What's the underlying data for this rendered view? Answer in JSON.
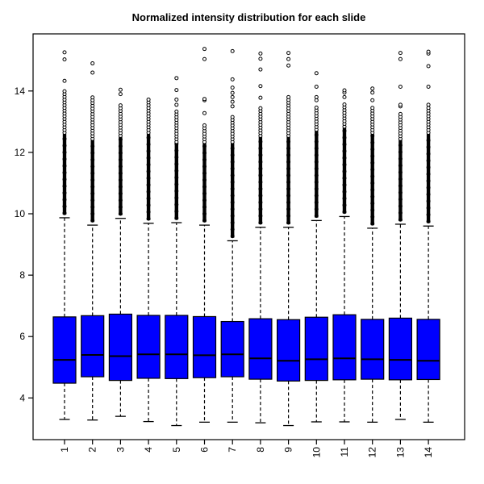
{
  "title": "Normalized intensity distribution for each slide",
  "colors": {
    "box_fill": "#0000ff",
    "stroke": "#000000",
    "background": "#ffffff"
  },
  "chart_data": {
    "type": "boxplot",
    "title": "Normalized intensity distribution for each slide",
    "xlabel": "",
    "ylabel": "",
    "categories": [
      "1",
      "2",
      "3",
      "4",
      "5",
      "6",
      "7",
      "8",
      "9",
      "10",
      "11",
      "12",
      "13",
      "14"
    ],
    "y_ticks": [
      4,
      6,
      8,
      10,
      12,
      14
    ],
    "ylim": [
      2.6,
      15.9
    ],
    "grid": false,
    "legend": false,
    "box_fill": "#0000ff",
    "whisker_style": "dashed",
    "series": [
      {
        "label": "1",
        "whisker_low": 3.3,
        "q1": 4.48,
        "median": 5.24,
        "q3": 6.64,
        "whisker_high": 9.87,
        "dense_outliers_to": 12.6,
        "scattered_outliers_to": 14.0,
        "outliers": [
          14.33,
          15.03,
          15.26
        ]
      },
      {
        "label": "2",
        "whisker_low": 3.28,
        "q1": 4.69,
        "median": 5.4,
        "q3": 6.68,
        "whisker_high": 9.63,
        "dense_outliers_to": 12.4,
        "scattered_outliers_to": 13.85,
        "outliers": [
          14.6,
          14.9
        ]
      },
      {
        "label": "3",
        "whisker_low": 3.4,
        "q1": 4.57,
        "median": 5.36,
        "q3": 6.73,
        "whisker_high": 9.85,
        "dense_outliers_to": 12.5,
        "scattered_outliers_to": 13.6,
        "outliers": [
          13.9,
          14.04
        ]
      },
      {
        "label": "4",
        "whisker_low": 3.23,
        "q1": 4.64,
        "median": 5.42,
        "q3": 6.69,
        "whisker_high": 9.69,
        "dense_outliers_to": 12.6,
        "scattered_outliers_to": 13.75,
        "outliers": []
      },
      {
        "label": "5",
        "whisker_low": 3.1,
        "q1": 4.63,
        "median": 5.42,
        "q3": 6.69,
        "whisker_high": 9.71,
        "dense_outliers_to": 12.3,
        "scattered_outliers_to": 13.35,
        "outliers": [
          13.55,
          13.72,
          14.03,
          14.42
        ]
      },
      {
        "label": "6",
        "whisker_low": 3.21,
        "q1": 4.66,
        "median": 5.39,
        "q3": 6.65,
        "whisker_high": 9.63,
        "dense_outliers_to": 12.3,
        "scattered_outliers_to": 12.95,
        "outliers": [
          13.28,
          13.7,
          13.74,
          15.04,
          15.37
        ]
      },
      {
        "label": "7",
        "whisker_low": 3.21,
        "q1": 4.69,
        "median": 5.42,
        "q3": 6.49,
        "whisker_high": 9.12,
        "dense_outliers_to": 12.3,
        "scattered_outliers_to": 13.15,
        "outliers": [
          13.5,
          13.65,
          13.8,
          13.94,
          14.11,
          14.38,
          15.3
        ]
      },
      {
        "label": "8",
        "whisker_low": 3.19,
        "q1": 4.61,
        "median": 5.29,
        "q3": 6.58,
        "whisker_high": 9.56,
        "dense_outliers_to": 12.5,
        "scattered_outliers_to": 13.5,
        "outliers": [
          13.78,
          14.16,
          14.7,
          15.05,
          15.22
        ]
      },
      {
        "label": "9",
        "whisker_low": 3.1,
        "q1": 4.55,
        "median": 5.21,
        "q3": 6.55,
        "whisker_high": 9.56,
        "dense_outliers_to": 12.5,
        "scattered_outliers_to": 13.8,
        "outliers": [
          14.83,
          15.04,
          15.24
        ]
      },
      {
        "label": "10",
        "whisker_low": 3.22,
        "q1": 4.57,
        "median": 5.26,
        "q3": 6.63,
        "whisker_high": 9.78,
        "dense_outliers_to": 12.7,
        "scattered_outliers_to": 13.5,
        "outliers": [
          13.7,
          13.8,
          14.14,
          14.58
        ]
      },
      {
        "label": "11",
        "whisker_low": 3.22,
        "q1": 4.59,
        "median": 5.29,
        "q3": 6.71,
        "whisker_high": 9.91,
        "dense_outliers_to": 12.8,
        "scattered_outliers_to": 13.6,
        "outliers": [
          13.8,
          13.95,
          14.02
        ]
      },
      {
        "label": "12",
        "whisker_low": 3.21,
        "q1": 4.61,
        "median": 5.26,
        "q3": 6.56,
        "whisker_high": 9.53,
        "dense_outliers_to": 12.6,
        "scattered_outliers_to": 13.45,
        "outliers": [
          13.7,
          13.95,
          14.08
        ]
      },
      {
        "label": "13",
        "whisker_low": 3.3,
        "q1": 4.59,
        "median": 5.24,
        "q3": 6.6,
        "whisker_high": 9.66,
        "dense_outliers_to": 12.4,
        "scattered_outliers_to": 13.3,
        "outliers": [
          13.5,
          13.55,
          14.14,
          15.04,
          15.24
        ]
      },
      {
        "label": "14",
        "whisker_low": 3.21,
        "q1": 4.6,
        "median": 5.21,
        "q3": 6.56,
        "whisker_high": 9.6,
        "dense_outliers_to": 12.6,
        "scattered_outliers_to": 13.5,
        "outliers": [
          13.55,
          14.14,
          14.81,
          15.22,
          15.28
        ]
      }
    ]
  }
}
